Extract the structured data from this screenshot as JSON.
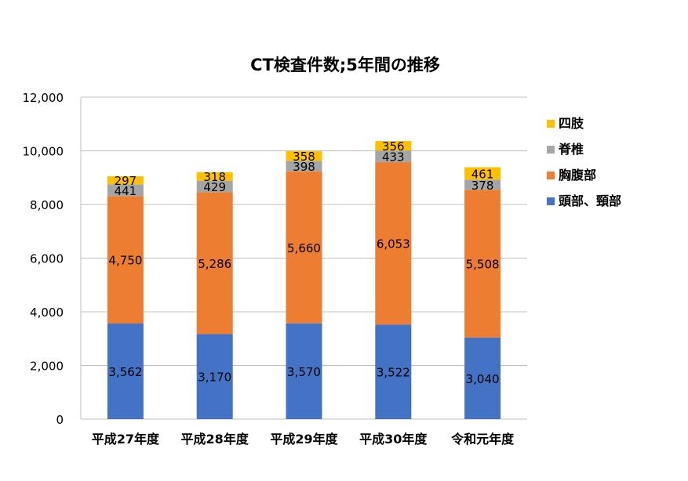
{
  "chart_data": {
    "type": "bar",
    "stacked": true,
    "title": "CT検査件数;5年間の推移",
    "categories": [
      "平成27年度",
      "平成28年度",
      "平成29年度",
      "平成30年度",
      "令和元年度"
    ],
    "series": [
      {
        "name": "頭部、頸部",
        "color": "#4472C4",
        "values": [
          3562,
          3170,
          3570,
          3522,
          3040
        ]
      },
      {
        "name": "胸腹部",
        "color": "#ED7D31",
        "values": [
          4750,
          5286,
          5660,
          6053,
          5508
        ]
      },
      {
        "name": "脊椎",
        "color": "#A5A5A5",
        "values": [
          441,
          429,
          398,
          433,
          378
        ]
      },
      {
        "name": "四肢",
        "color": "#FFC000",
        "values": [
          297,
          318,
          358,
          356,
          461
        ]
      }
    ],
    "ylim": [
      0,
      12000
    ],
    "yticks": [
      0,
      2000,
      4000,
      6000,
      8000,
      10000,
      12000
    ],
    "ytick_labels": [
      "0",
      "2,000",
      "4,000",
      "6,000",
      "8,000",
      "10,000",
      "12,000"
    ],
    "data_labels": true,
    "grid": true,
    "legend_position": "right"
  }
}
